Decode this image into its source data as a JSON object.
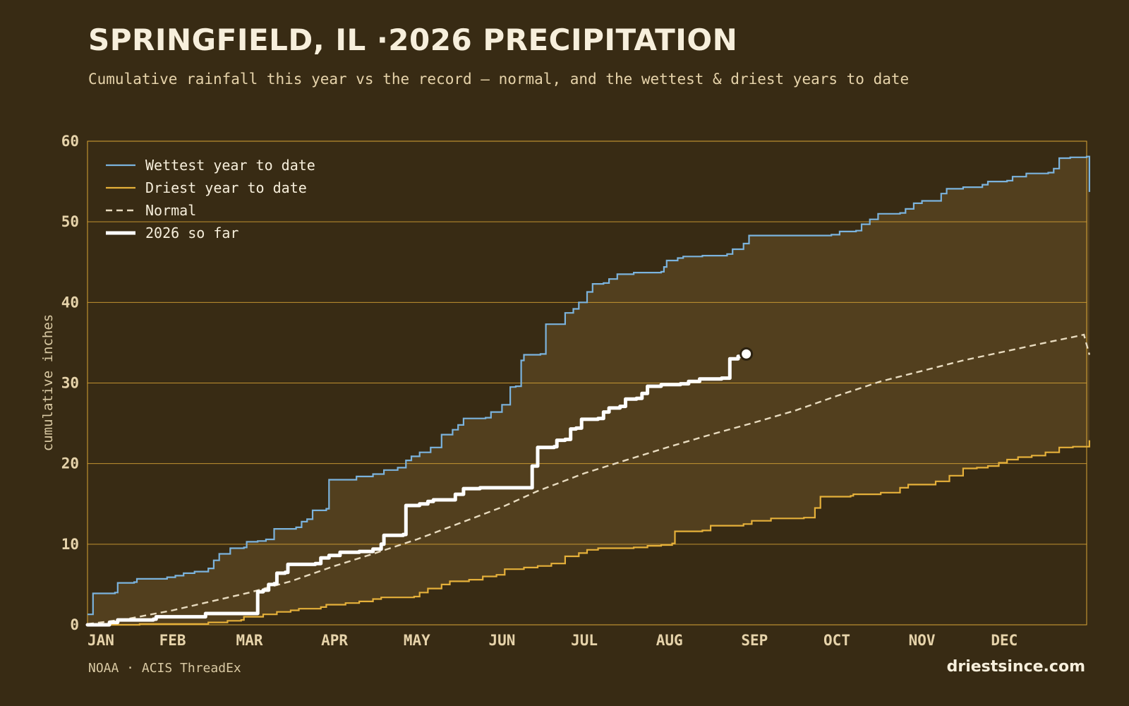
{
  "header": {
    "title": "SPRINGFIELD, IL ·2026 PRECIPITATION",
    "subtitle": "Cumulative rainfall this year vs the record — normal, and the wettest & driest years to date"
  },
  "footer": {
    "source": "NOAA · ACIS ThreadEx",
    "brand": "driestsince.com"
  },
  "colors": {
    "background": "#382b14",
    "band_fill": "#523f1e",
    "grid": "#d9a536",
    "wettest": "#7bb3dd",
    "driest": "#e5b03a",
    "normal": "#e8dbbf",
    "current": "#ffffff"
  },
  "chart_data": {
    "type": "line",
    "title": "",
    "xlabel": "",
    "ylabel": "cumulative inches",
    "x_unit": "day of year",
    "xlim": [
      1,
      365
    ],
    "ylim": [
      0,
      60
    ],
    "yticks": [
      0,
      10,
      20,
      30,
      40,
      50,
      60
    ],
    "xtick_labels": [
      "JAN",
      "FEB",
      "MAR",
      "APR",
      "MAY",
      "JUN",
      "JUL",
      "AUG",
      "SEP",
      "OCT",
      "NOV",
      "DEC"
    ],
    "xtick_days": [
      1,
      32,
      60,
      91,
      121,
      152,
      182,
      213,
      244,
      274,
      305,
      335
    ],
    "grid": "horizontal",
    "legend_position": "top-left",
    "band": "shaded area between wettest and driest year to date",
    "series": [
      {
        "name": "Wettest year to date",
        "style": "solid",
        "points": [
          [
            1,
            1.3
          ],
          [
            3,
            3.9
          ],
          [
            11,
            4.0
          ],
          [
            12,
            5.2
          ],
          [
            18,
            5.3
          ],
          [
            19,
            5.7
          ],
          [
            30,
            5.9
          ],
          [
            33,
            6.1
          ],
          [
            36,
            6.4
          ],
          [
            40,
            6.6
          ],
          [
            43,
            6.6
          ],
          [
            45,
            7.0
          ],
          [
            47,
            8.0
          ],
          [
            49,
            8.8
          ],
          [
            53,
            9.5
          ],
          [
            58,
            9.6
          ],
          [
            59,
            10.3
          ],
          [
            63,
            10.4
          ],
          [
            66,
            10.6
          ],
          [
            69,
            11.9
          ],
          [
            77,
            12.1
          ],
          [
            79,
            12.8
          ],
          [
            81,
            13.1
          ],
          [
            83,
            14.2
          ],
          [
            88,
            14.4
          ],
          [
            89,
            18.0
          ],
          [
            99,
            18.4
          ],
          [
            105,
            18.7
          ],
          [
            109,
            19.2
          ],
          [
            114,
            19.5
          ],
          [
            117,
            20.4
          ],
          [
            119,
            20.9
          ],
          [
            122,
            21.4
          ],
          [
            126,
            22.0
          ],
          [
            130,
            23.6
          ],
          [
            134,
            24.2
          ],
          [
            136,
            24.8
          ],
          [
            138,
            25.6
          ],
          [
            146,
            25.7
          ],
          [
            148,
            26.4
          ],
          [
            152,
            27.3
          ],
          [
            155,
            29.5
          ],
          [
            157,
            29.6
          ],
          [
            159,
            32.8
          ],
          [
            160,
            33.5
          ],
          [
            166,
            33.6
          ],
          [
            168,
            37.3
          ],
          [
            173,
            37.3
          ],
          [
            175,
            38.7
          ],
          [
            178,
            39.2
          ],
          [
            180,
            40.0
          ],
          [
            183,
            41.3
          ],
          [
            185,
            42.3
          ],
          [
            189,
            42.4
          ],
          [
            191,
            42.9
          ],
          [
            194,
            43.5
          ],
          [
            200,
            43.7
          ],
          [
            210,
            43.8
          ],
          [
            211,
            44.4
          ],
          [
            212,
            45.2
          ],
          [
            216,
            45.5
          ],
          [
            218,
            45.7
          ],
          [
            225,
            45.8
          ],
          [
            234,
            46.0
          ],
          [
            236,
            46.6
          ],
          [
            240,
            47.3
          ],
          [
            242,
            48.3
          ],
          [
            255,
            48.3
          ],
          [
            272,
            48.4
          ],
          [
            275,
            48.8
          ],
          [
            281,
            48.9
          ],
          [
            283,
            49.7
          ],
          [
            286,
            50.3
          ],
          [
            289,
            51.0
          ],
          [
            297,
            51.1
          ],
          [
            299,
            51.6
          ],
          [
            302,
            52.3
          ],
          [
            305,
            52.6
          ],
          [
            312,
            53.5
          ],
          [
            314,
            54.1
          ],
          [
            320,
            54.3
          ],
          [
            327,
            54.6
          ],
          [
            329,
            55.0
          ],
          [
            336,
            55.1
          ],
          [
            338,
            55.6
          ],
          [
            343,
            56.0
          ],
          [
            351,
            56.1
          ],
          [
            353,
            56.6
          ],
          [
            355,
            57.9
          ],
          [
            359,
            58.0
          ],
          [
            365,
            58.1
          ],
          [
            366,
            53.7
          ]
        ]
      },
      {
        "name": "Driest year to date",
        "style": "solid",
        "points": [
          [
            1,
            0.0
          ],
          [
            15,
            0.0
          ],
          [
            20,
            0.1
          ],
          [
            40,
            0.1
          ],
          [
            45,
            0.3
          ],
          [
            52,
            0.5
          ],
          [
            57,
            0.6
          ],
          [
            58,
            1.0
          ],
          [
            65,
            1.3
          ],
          [
            70,
            1.6
          ],
          [
            75,
            1.8
          ],
          [
            78,
            2.0
          ],
          [
            86,
            2.2
          ],
          [
            88,
            2.5
          ],
          [
            95,
            2.7
          ],
          [
            100,
            2.9
          ],
          [
            105,
            3.2
          ],
          [
            108,
            3.4
          ],
          [
            120,
            3.5
          ],
          [
            122,
            4.0
          ],
          [
            125,
            4.5
          ],
          [
            130,
            5.0
          ],
          [
            133,
            5.4
          ],
          [
            140,
            5.6
          ],
          [
            145,
            6.0
          ],
          [
            150,
            6.2
          ],
          [
            153,
            6.9
          ],
          [
            160,
            7.1
          ],
          [
            165,
            7.3
          ],
          [
            170,
            7.6
          ],
          [
            175,
            8.5
          ],
          [
            180,
            8.9
          ],
          [
            183,
            9.3
          ],
          [
            187,
            9.5
          ],
          [
            200,
            9.6
          ],
          [
            205,
            9.8
          ],
          [
            210,
            9.9
          ],
          [
            214,
            10.1
          ],
          [
            215,
            11.6
          ],
          [
            225,
            11.7
          ],
          [
            228,
            12.3
          ],
          [
            240,
            12.5
          ],
          [
            243,
            12.9
          ],
          [
            250,
            13.2
          ],
          [
            262,
            13.3
          ],
          [
            266,
            14.5
          ],
          [
            268,
            15.9
          ],
          [
            279,
            16.0
          ],
          [
            280,
            16.2
          ],
          [
            290,
            16.4
          ],
          [
            297,
            17.0
          ],
          [
            300,
            17.4
          ],
          [
            310,
            17.8
          ],
          [
            315,
            18.5
          ],
          [
            320,
            19.4
          ],
          [
            325,
            19.5
          ],
          [
            329,
            19.7
          ],
          [
            333,
            20.1
          ],
          [
            336,
            20.5
          ],
          [
            340,
            20.8
          ],
          [
            345,
            21.0
          ],
          [
            350,
            21.4
          ],
          [
            355,
            22.0
          ],
          [
            360,
            22.1
          ],
          [
            366,
            22.9
          ]
        ]
      },
      {
        "name": "Normal",
        "style": "dashed",
        "points": [
          [
            1,
            0.1
          ],
          [
            15,
            0.7
          ],
          [
            32,
            1.8
          ],
          [
            60,
            4.0
          ],
          [
            75,
            5.4
          ],
          [
            91,
            7.3
          ],
          [
            105,
            8.8
          ],
          [
            121,
            10.6
          ],
          [
            135,
            12.4
          ],
          [
            152,
            14.6
          ],
          [
            165,
            16.6
          ],
          [
            182,
            18.8
          ],
          [
            196,
            20.3
          ],
          [
            213,
            22.1
          ],
          [
            228,
            23.6
          ],
          [
            244,
            25.1
          ],
          [
            259,
            26.6
          ],
          [
            274,
            28.4
          ],
          [
            290,
            30.2
          ],
          [
            305,
            31.5
          ],
          [
            320,
            32.8
          ],
          [
            335,
            33.9
          ],
          [
            350,
            35.0
          ],
          [
            360,
            35.7
          ],
          [
            364,
            36.0
          ],
          [
            366,
            33.5
          ]
        ]
      },
      {
        "name": "2026 so far",
        "style": "solid-thick",
        "points": [
          [
            1,
            0.0
          ],
          [
            9,
            0.3
          ],
          [
            12,
            0.6
          ],
          [
            25,
            0.7
          ],
          [
            26,
            1.0
          ],
          [
            43,
            1.0
          ],
          [
            44,
            1.4
          ],
          [
            61,
            1.4
          ],
          [
            63,
            4.1
          ],
          [
            65,
            4.3
          ],
          [
            67,
            5.0
          ],
          [
            69,
            5.1
          ],
          [
            70,
            6.4
          ],
          [
            73,
            6.5
          ],
          [
            74,
            7.5
          ],
          [
            84,
            7.6
          ],
          [
            86,
            8.3
          ],
          [
            89,
            8.6
          ],
          [
            93,
            9.0
          ],
          [
            100,
            9.1
          ],
          [
            105,
            9.4
          ],
          [
            108,
            10.0
          ],
          [
            109,
            11.1
          ],
          [
            116,
            11.2
          ],
          [
            117,
            14.8
          ],
          [
            122,
            15.0
          ],
          [
            125,
            15.3
          ],
          [
            127,
            15.5
          ],
          [
            135,
            16.2
          ],
          [
            138,
            16.9
          ],
          [
            144,
            17.0
          ],
          [
            161,
            17.0
          ],
          [
            163,
            19.7
          ],
          [
            165,
            22.0
          ],
          [
            171,
            22.1
          ],
          [
            172,
            22.9
          ],
          [
            175,
            23.0
          ],
          [
            177,
            24.3
          ],
          [
            179,
            24.4
          ],
          [
            181,
            25.5
          ],
          [
            187,
            25.6
          ],
          [
            189,
            26.4
          ],
          [
            191,
            26.9
          ],
          [
            195,
            27.1
          ],
          [
            197,
            28.0
          ],
          [
            201,
            28.1
          ],
          [
            203,
            28.7
          ],
          [
            205,
            29.6
          ],
          [
            210,
            29.8
          ],
          [
            217,
            29.9
          ],
          [
            220,
            30.2
          ],
          [
            224,
            30.5
          ],
          [
            232,
            30.6
          ],
          [
            235,
            33.0
          ],
          [
            238,
            33.3
          ],
          [
            241,
            33.6
          ]
        ]
      }
    ],
    "current_marker": {
      "day": 241,
      "value": 33.6
    }
  }
}
